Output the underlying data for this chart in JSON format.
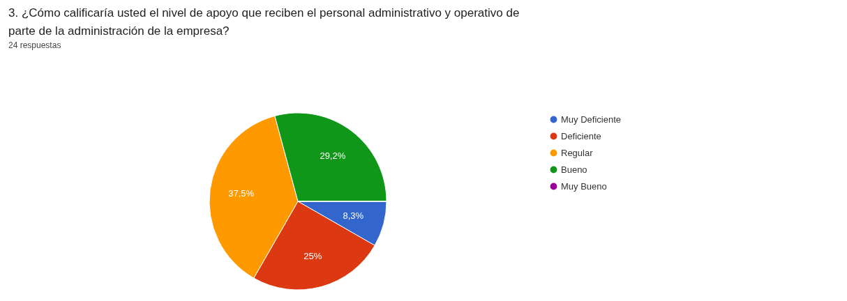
{
  "chart_data": {
    "type": "pie",
    "title": "3.  ¿Cómo calificaría usted el nivel de apoyo que reciben el personal administrativo y operativo de parte de la administración de la empresa?",
    "subtitle": "24 respuestas",
    "categories": [
      "Muy Deficiente",
      "Deficiente",
      "Regular",
      "Bueno",
      "Muy Bueno"
    ],
    "values": [
      8.3,
      25,
      37.5,
      29.2,
      0
    ],
    "colors": [
      "#3366cc",
      "#dc3912",
      "#ff9900",
      "#109618",
      "#990099"
    ],
    "value_labels": [
      "8,3%",
      "25%",
      "37,5%",
      "29,2%",
      null
    ],
    "legend": "right"
  }
}
